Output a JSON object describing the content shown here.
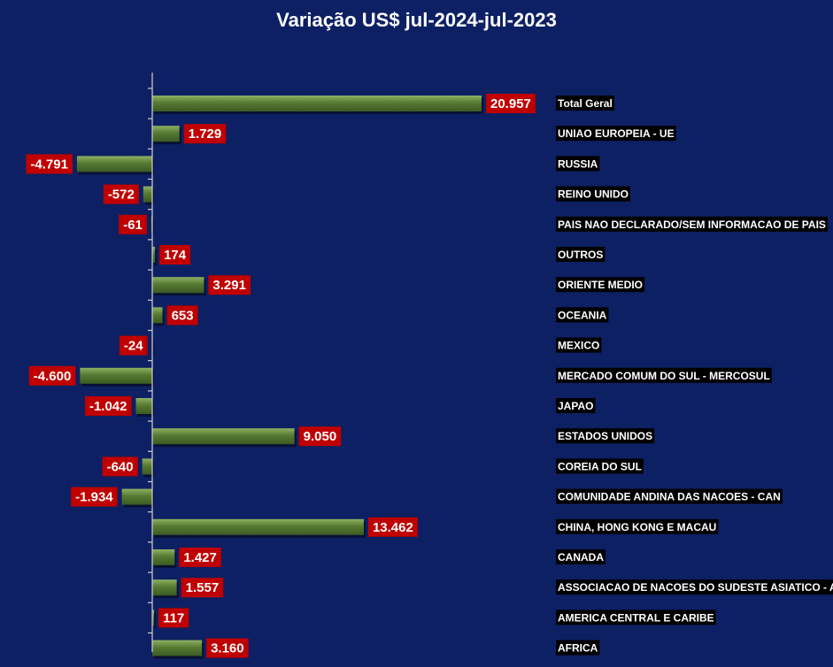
{
  "chart_data": {
    "type": "bar",
    "orientation": "horizontal",
    "title": "Variação US$ jul-2024-jul-2023",
    "categories": [
      "Total Geral",
      "UNIAO EUROPEIA - UE",
      "RUSSIA",
      "REINO UNIDO",
      "PAIS NAO DECLARADO/SEM INFORMACAO DE PAIS",
      "OUTROS",
      "ORIENTE MEDIO",
      "OCEANIA",
      "MEXICO",
      "MERCADO COMUM DO SUL - MERCOSUL",
      "JAPAO",
      "ESTADOS UNIDOS",
      "COREIA DO SUL",
      "COMUNIDADE ANDINA DAS NACOES - CAN",
      "CHINA, HONG KONG E MACAU",
      "CANADA",
      "ASSOCIACAO DE NACOES DO SUDESTE ASIATICO - ASEAN",
      "AMERICA CENTRAL E CARIBE",
      "AFRICA"
    ],
    "values": [
      20957,
      1729,
      -4791,
      -572,
      -61,
      174,
      3291,
      653,
      -24,
      -4600,
      -1042,
      9050,
      -640,
      -1934,
      13462,
      1427,
      1557,
      117,
      3160
    ],
    "value_labels": [
      "20.957",
      "1.729",
      "-4.791",
      "-572",
      "-61",
      "174",
      "3.291",
      "653",
      "-24",
      "-4.600",
      "-1.042",
      "9.050",
      "-640",
      "-1.934",
      "13.462",
      "1.427",
      "1.557",
      "117",
      "3.160"
    ],
    "xlim": [
      -5700,
      20957
    ],
    "grid": false,
    "legend": "none",
    "colors": {
      "background": "#0d2063",
      "bar": "#4d6b2e",
      "bar_highlight": "#7fa055",
      "value_label_bg": "#c00000",
      "category_label_bg": "#000000",
      "text": "#ffffff",
      "axis": "#d0d0d0"
    }
  }
}
